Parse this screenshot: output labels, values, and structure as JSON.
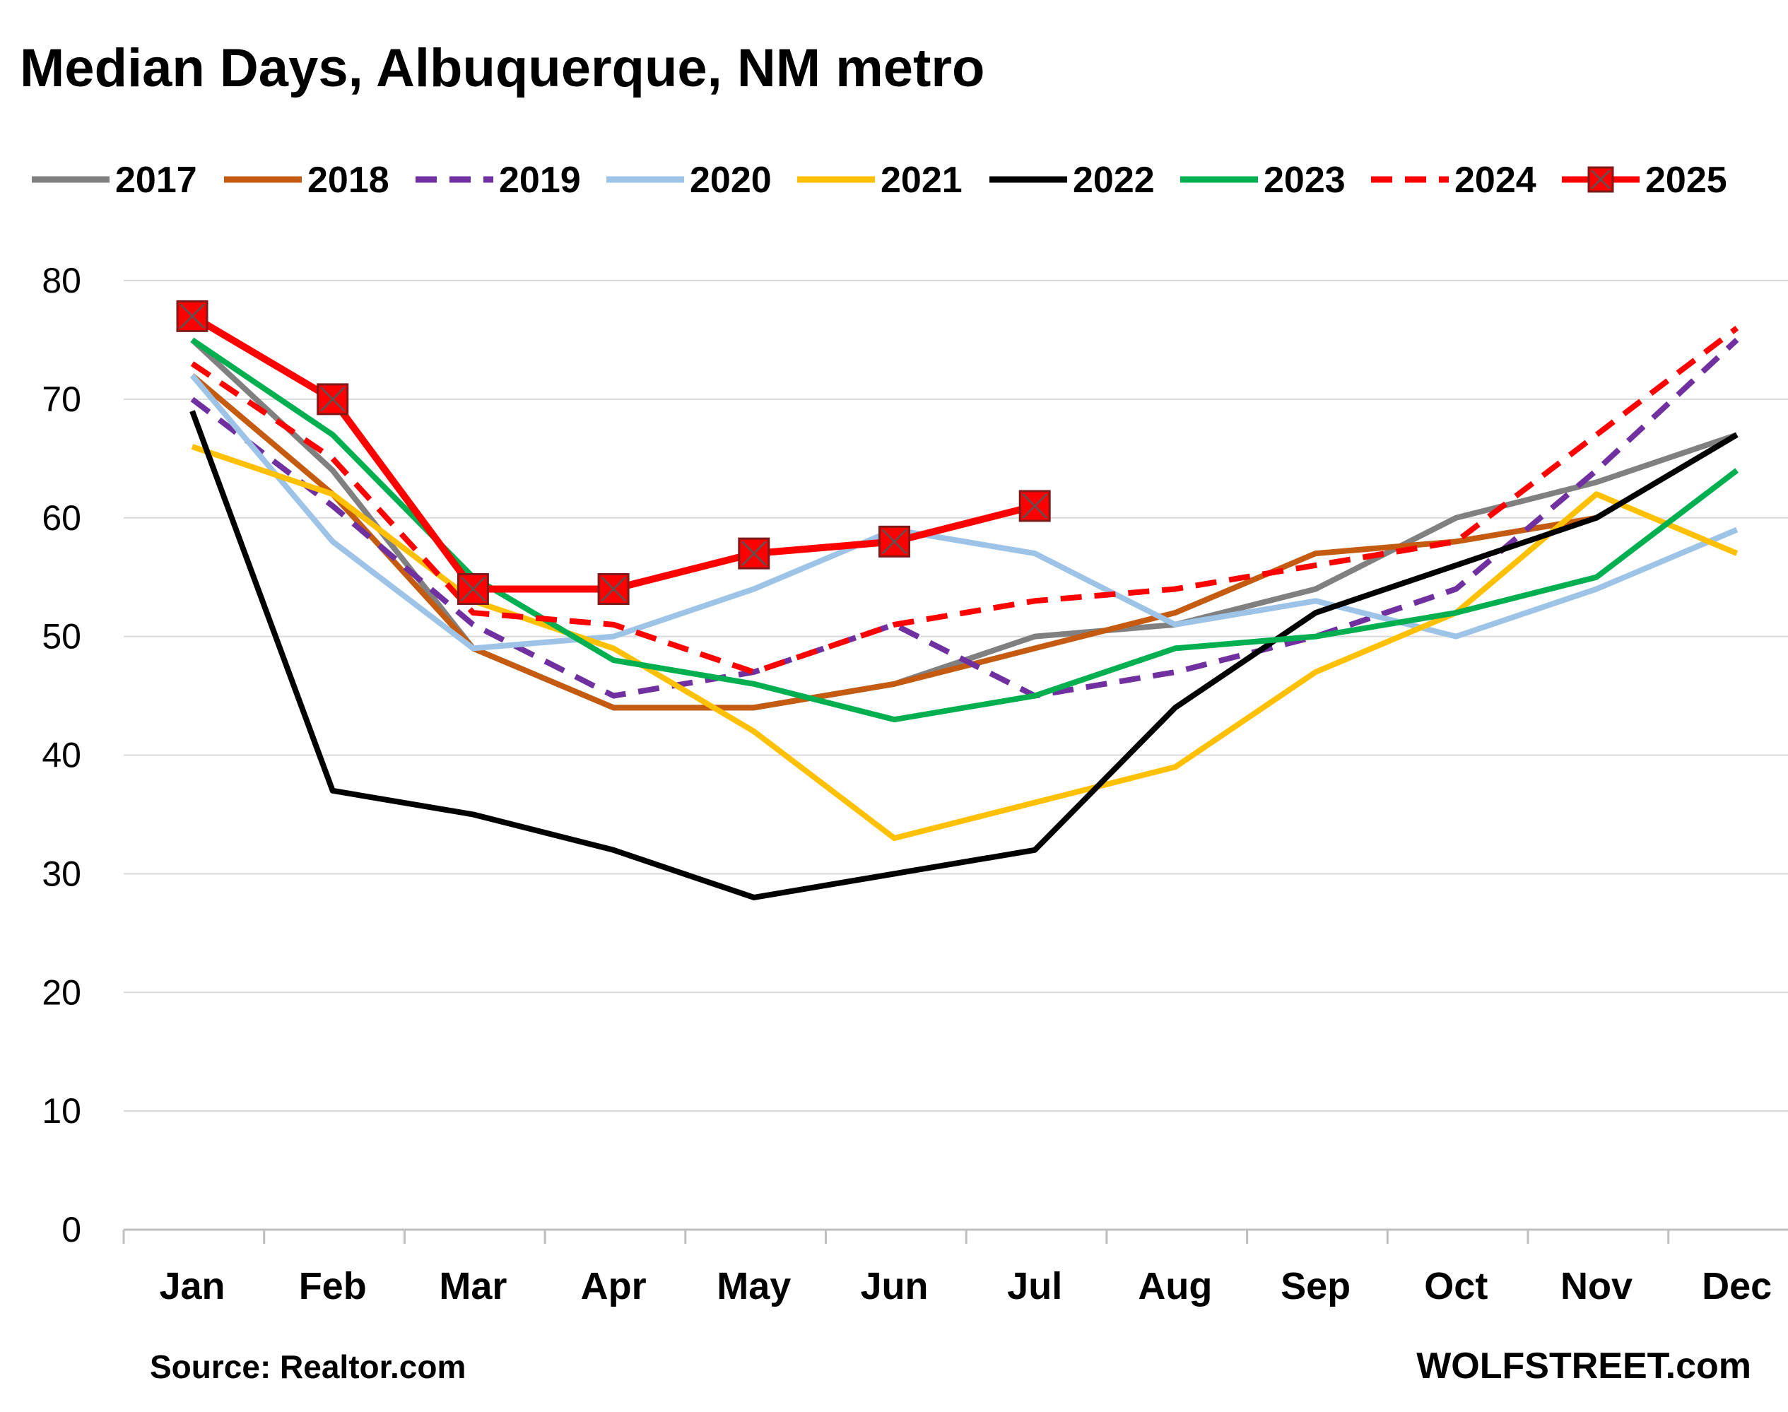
{
  "chart_data": {
    "type": "line",
    "title": "Median Days, Albuquerque, NM metro",
    "xlabel": "",
    "ylabel": "",
    "categories": [
      "Jan",
      "Feb",
      "Mar",
      "Apr",
      "May",
      "Jun",
      "Jul",
      "Aug",
      "Sep",
      "Oct",
      "Nov",
      "Dec"
    ],
    "ylim": [
      0,
      80
    ],
    "yticks": [
      0,
      10,
      20,
      30,
      40,
      50,
      60,
      70,
      80
    ],
    "grid": true,
    "legend_placement": "top",
    "series": [
      {
        "name": "2017",
        "color": "#808080",
        "dash": "solid",
        "marker": "none",
        "values": [
          75,
          64,
          49,
          44,
          44,
          46,
          50,
          51,
          54,
          60,
          63,
          67
        ]
      },
      {
        "name": "2018",
        "color": "#C55A11",
        "dash": "solid",
        "marker": "none",
        "values": [
          72,
          62,
          49,
          44,
          44,
          46,
          49,
          52,
          57,
          58,
          60,
          null
        ]
      },
      {
        "name": "2019",
        "color": "#7030A0",
        "dash": "dash",
        "marker": "none",
        "values": [
          70,
          61,
          51,
          45,
          47,
          51,
          45,
          47,
          50,
          54,
          64,
          75
        ]
      },
      {
        "name": "2020",
        "color": "#9DC3E6",
        "dash": "solid",
        "marker": "none",
        "values": [
          72,
          58,
          49,
          50,
          54,
          59,
          57,
          51,
          53,
          50,
          54,
          59
        ]
      },
      {
        "name": "2021",
        "color": "#FFC000",
        "dash": "solid",
        "marker": "none",
        "values": [
          66,
          62,
          53,
          49,
          42,
          33,
          36,
          39,
          47,
          52,
          62,
          57
        ]
      },
      {
        "name": "2022",
        "color": "#000000",
        "dash": "solid",
        "marker": "none",
        "values": [
          69,
          37,
          35,
          32,
          28,
          30,
          32,
          44,
          52,
          56,
          60,
          67
        ]
      },
      {
        "name": "2023",
        "color": "#00B050",
        "dash": "solid",
        "marker": "none",
        "values": [
          75,
          67,
          55,
          48,
          46,
          43,
          45,
          49,
          50,
          52,
          55,
          64
        ]
      },
      {
        "name": "2024",
        "color": "#FF0000",
        "dash": "dash",
        "marker": "none",
        "values": [
          73,
          65,
          52,
          51,
          47,
          51,
          53,
          54,
          56,
          58,
          67,
          76
        ]
      },
      {
        "name": "2025",
        "color": "#FF0000",
        "dash": "solid",
        "marker": "square-x",
        "values": [
          77,
          70,
          54,
          54,
          57,
          58,
          61,
          null,
          null,
          null,
          null,
          null
        ]
      }
    ]
  },
  "footer": {
    "source": "Source: Realtor.com",
    "brand": "WOLFSTREET.com"
  }
}
